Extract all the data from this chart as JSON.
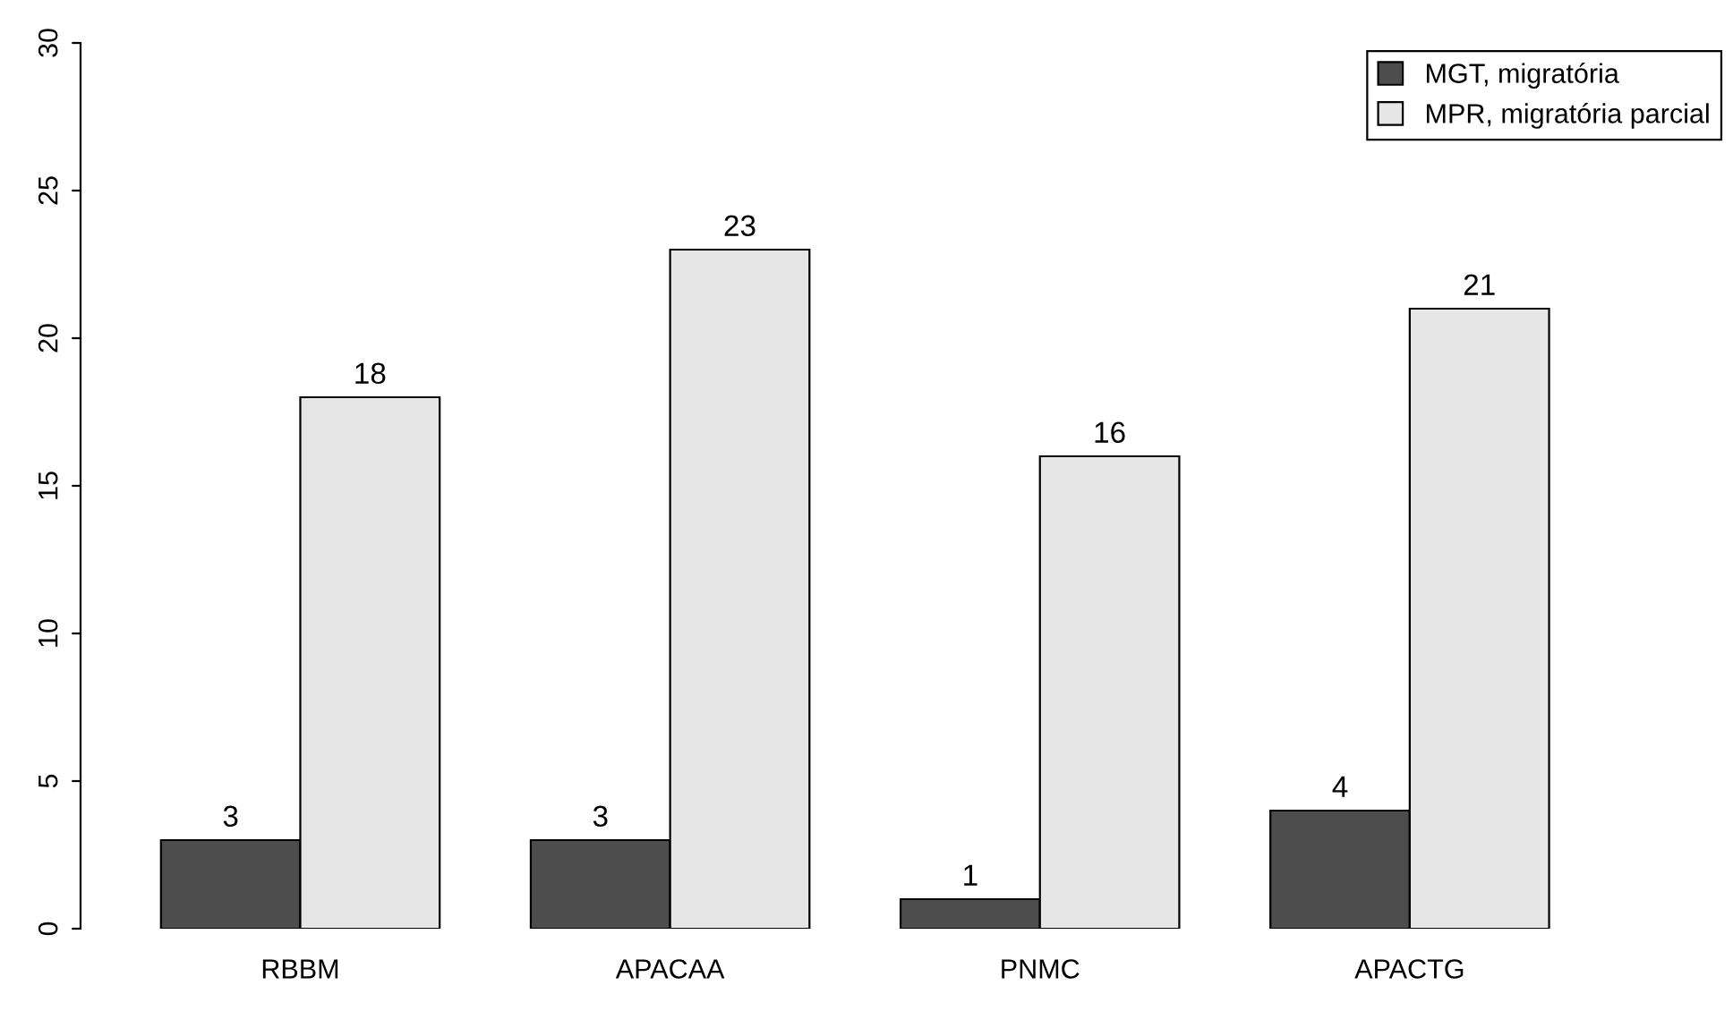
{
  "chart_data": {
    "type": "bar",
    "categories": [
      "RBBM",
      "APACAA",
      "PNMC",
      "APACTG"
    ],
    "series": [
      {
        "name": "MGT, migratória",
        "color": "#4d4d4d",
        "values": [
          3,
          3,
          1,
          4
        ]
      },
      {
        "name": "MPR, migratória parcial",
        "color": "#e6e6e6",
        "values": [
          18,
          23,
          16,
          21
        ]
      }
    ],
    "ylim": [
      0,
      30
    ],
    "yticks": [
      0,
      5,
      10,
      15,
      20,
      25,
      30
    ],
    "data_labels": true,
    "grid": false,
    "legend": "top right"
  }
}
